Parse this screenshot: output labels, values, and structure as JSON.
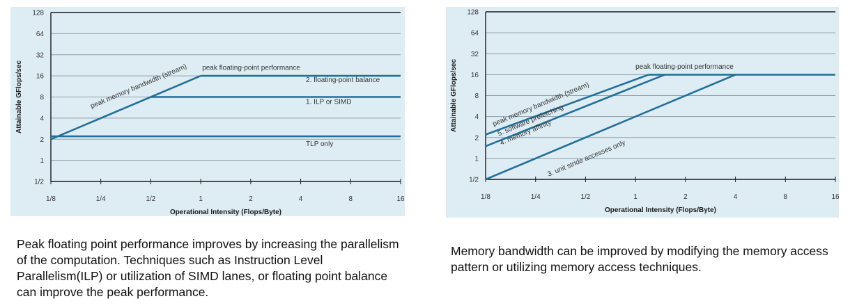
{
  "chart_data": [
    {
      "type": "line",
      "xscale": "log2",
      "yscale": "log2",
      "xlabel": "Operational Intensity (Flops/Byte)",
      "ylabel": "Attainable GFlops/sec",
      "xlim": [
        0.125,
        16
      ],
      "ylim": [
        0.5,
        128
      ],
      "x_ticks": [
        "1/8",
        "1/4",
        "1/2",
        "1",
        "2",
        "4",
        "8",
        "16"
      ],
      "y_ticks": [
        "1/2",
        "1",
        "2",
        "4",
        "8",
        "16",
        "32",
        "64",
        "128"
      ],
      "grid": "horizontal",
      "series": [
        {
          "name": "peak memory bandwidth (stream)",
          "x": [
            0.125,
            1
          ],
          "y": [
            2,
            16
          ]
        },
        {
          "name": "peak floating-point performance",
          "x": [
            1,
            16
          ],
          "y": [
            16,
            16
          ]
        },
        {
          "name": "2. floating-point balance",
          "x": [
            0.5,
            16
          ],
          "y": [
            8,
            8
          ]
        },
        {
          "name": "TLP only",
          "x": [
            0.125,
            16
          ],
          "y": [
            2.2,
            2.2
          ]
        }
      ],
      "annotations": [
        {
          "text": "peak floating-point performance",
          "x": 1.02,
          "y": 19.5
        },
        {
          "text": "2. floating-point balance",
          "x": 4.3,
          "y": 13
        },
        {
          "text": "1. ILP or SIMD",
          "x": 4.3,
          "y": 6.4
        },
        {
          "text": "TLP only",
          "x": 4.3,
          "y": 1.6
        },
        {
          "text": "peak memory bandwidth (stream)",
          "x": 0.22,
          "y": 5.5,
          "rotated": true
        }
      ]
    },
    {
      "type": "line",
      "xscale": "log2",
      "yscale": "log2",
      "xlabel": "Operational Intensity (Flops/Byte)",
      "ylabel": "Attainable GFlops/sec",
      "xlim": [
        0.125,
        16
      ],
      "ylim": [
        0.5,
        128
      ],
      "x_ticks": [
        "1/8",
        "1/4",
        "1/2",
        "1",
        "2",
        "4",
        "8",
        "16"
      ],
      "y_ticks": [
        "1/2",
        "1",
        "2",
        "4",
        "8",
        "16",
        "32",
        "64",
        "128"
      ],
      "grid": "horizontal",
      "series": [
        {
          "name": "peak memory bandwidth (stream)",
          "x": [
            0.125,
            1.2
          ],
          "y": [
            2.2,
            16
          ]
        },
        {
          "name": "5. software prefetching",
          "x": [
            0.125,
            1.5
          ],
          "y": [
            1.5,
            16
          ]
        },
        {
          "name": "3. unit stride accesses only",
          "x": [
            0.125,
            4
          ],
          "y": [
            0.5,
            16
          ]
        },
        {
          "name": "peak floating-point performance",
          "x": [
            1.2,
            16
          ],
          "y": [
            16,
            16
          ]
        }
      ],
      "annotations": [
        {
          "text": "peak floating-point performance",
          "x": 1.0,
          "y": 19.5
        },
        {
          "text": "peak memory bandwidth (stream)",
          "x": 0.14,
          "y": 2.9,
          "rotated": true
        },
        {
          "text": "5. software prefetching",
          "x": 0.15,
          "y": 2.1,
          "rotated": true
        },
        {
          "text": "4. memory affinity",
          "x": 0.155,
          "y": 1.55,
          "rotated": true
        },
        {
          "text": "3. unit stride accesses only",
          "x": 0.3,
          "y": 0.55,
          "rotated": true
        }
      ]
    }
  ],
  "captions": {
    "left": "Peak floating point performance improves by increasing the parallelism of the computation. Techniques such as Instruction Level Parallelism(ILP) or utilization of SIMD lanes, or floating point balance can improve the peak performance.",
    "right": "Memory bandwidth can be improved by modifying the memory access pattern or utilizing memory access techniques."
  },
  "colors": {
    "plot_background": "#deedf4",
    "series_line": "#236f97",
    "axis": "#1a1a1a",
    "grid": "#8f9ea6",
    "text": "#333333"
  }
}
